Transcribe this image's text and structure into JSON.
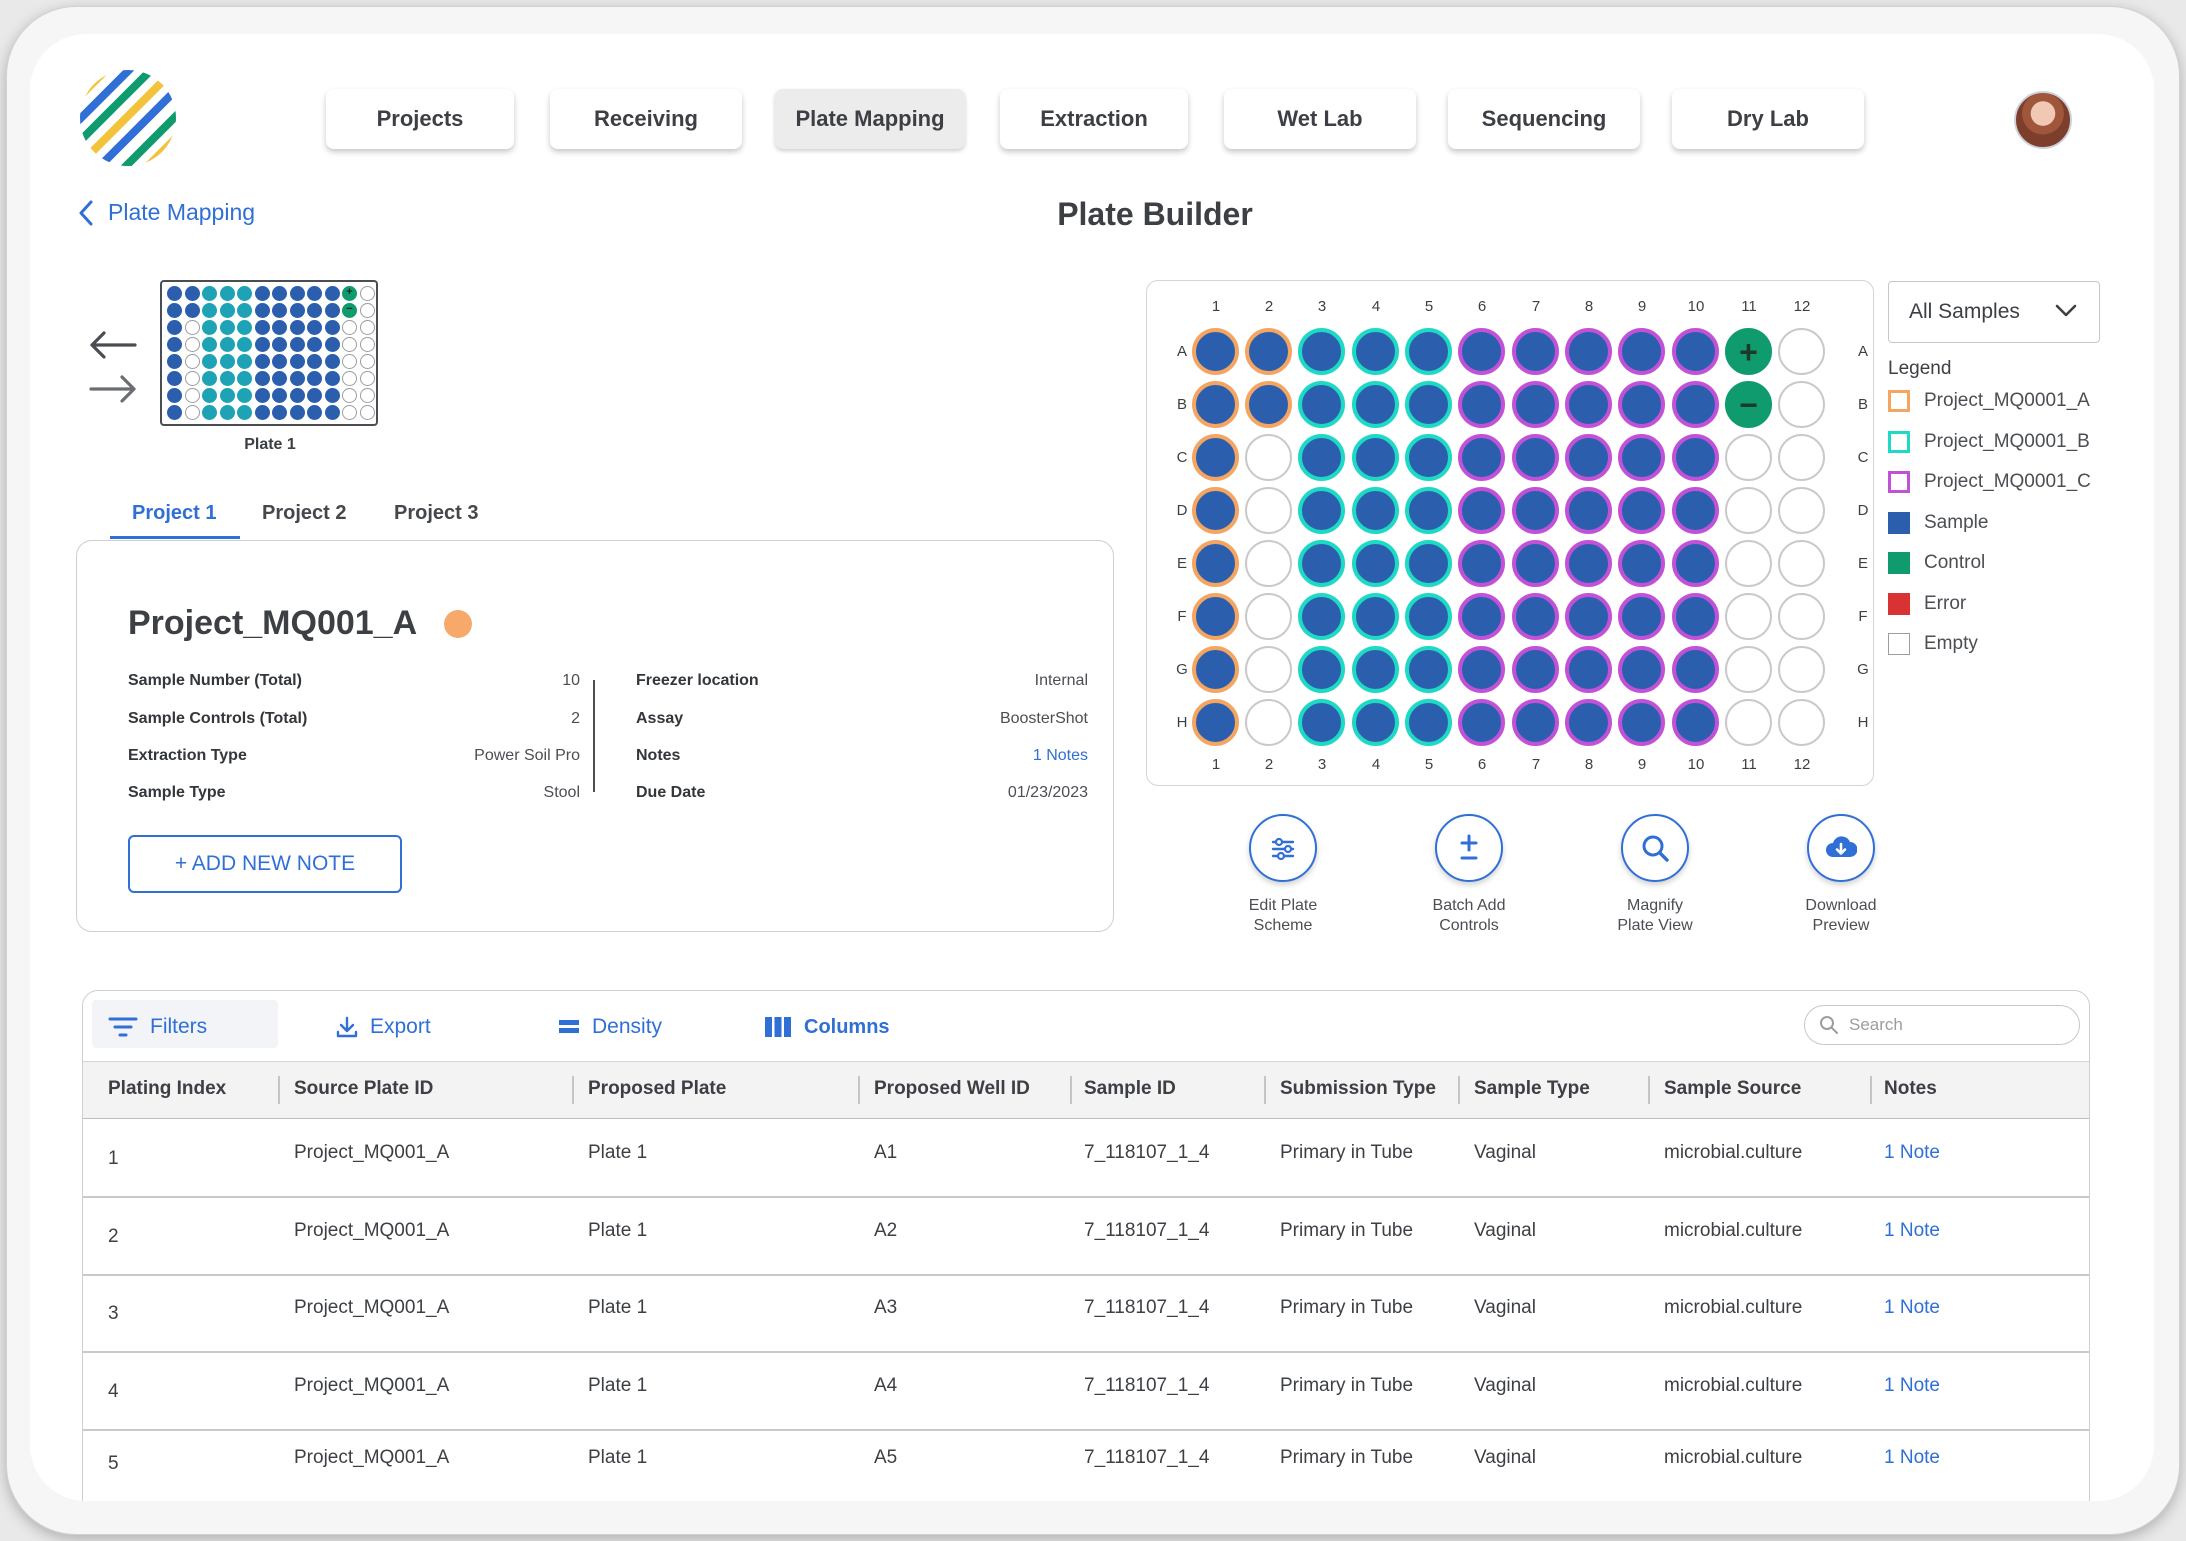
{
  "nav": {
    "tabs": [
      {
        "label": "Projects",
        "active": false
      },
      {
        "label": "Receiving",
        "active": false
      },
      {
        "label": "Plate Mapping",
        "active": true
      },
      {
        "label": "Extraction",
        "active": false
      },
      {
        "label": "Wet Lab",
        "active": false
      },
      {
        "label": "Sequencing",
        "active": false
      },
      {
        "label": "Dry Lab",
        "active": false
      }
    ]
  },
  "breadcrumb": {
    "back_label": "Plate Mapping"
  },
  "page": {
    "title": "Plate Builder"
  },
  "mini_plate": {
    "label": "Plate 1"
  },
  "project_tabs": [
    "Project 1",
    "Project 2",
    "Project 3"
  ],
  "project": {
    "name": "Project_MQ001_A",
    "color": "#f6a96a",
    "left_fields": [
      {
        "key": "Sample Number (Total)",
        "value": "10"
      },
      {
        "key": "Sample Controls (Total)",
        "value": "2"
      },
      {
        "key": "Extraction Type",
        "value": "Power Soil Pro"
      },
      {
        "key": "Sample Type",
        "value": "Stool"
      }
    ],
    "right_fields": [
      {
        "key": "Freezer location",
        "value": "Internal"
      },
      {
        "key": "Assay",
        "value": "BoosterShot"
      },
      {
        "key": "Notes",
        "value": "1 Notes"
      },
      {
        "key": "Due Date",
        "value": "01/23/2023"
      }
    ],
    "add_note_label": "+ ADD NEW NOTE"
  },
  "plate": {
    "columns": [
      "1",
      "2",
      "3",
      "4",
      "5",
      "6",
      "7",
      "8",
      "9",
      "10",
      "11",
      "12"
    ],
    "rows": [
      "A",
      "B",
      "C",
      "D",
      "E",
      "F",
      "G",
      "H"
    ],
    "colors": {
      "sample": "#2b5fad",
      "control": "#0f9b6e",
      "empty": "#ffffff",
      "project_a": "#f4a561",
      "project_b": "#1ed9c3",
      "project_c": "#c152d8",
      "empty_border": "#c9c9c9"
    },
    "wells": [
      "A A B B B C C C C C +c E",
      "A A B B B C C C C C -c E",
      "A E B B B C C C C C E E",
      "A E B B B C C C C C E E",
      "A E B B B C C C C C E E",
      "A E B B B C C C C C E E",
      "A E B B B C C C C C E E",
      "A E B B B C C C C C E E"
    ]
  },
  "filter": {
    "selected": "All Samples"
  },
  "legend": {
    "title": "Legend",
    "items": [
      {
        "label": "Project_MQ0001_A",
        "color": "#f4a561",
        "style": "outline"
      },
      {
        "label": "Project_MQ0001_B",
        "color": "#1ed9c3",
        "style": "outline"
      },
      {
        "label": "Project_MQ0001_C",
        "color": "#c152d8",
        "style": "outline"
      },
      {
        "label": "Sample",
        "color": "#2b5fad",
        "style": "fill"
      },
      {
        "label": "Control",
        "color": "#0f9b6e",
        "style": "fill"
      },
      {
        "label": "Error",
        "color": "#d83232",
        "style": "fill"
      },
      {
        "label": "Empty",
        "color": "#ffffff",
        "style": "empty"
      }
    ]
  },
  "actions": [
    {
      "label_1": "Edit Plate",
      "label_2": "Scheme",
      "icon": "sliders-icon"
    },
    {
      "label_1": "Batch Add",
      "label_2": "Controls",
      "icon": "plus-minus-icon"
    },
    {
      "label_1": "Magnify",
      "label_2": "Plate View",
      "icon": "magnify-icon"
    },
    {
      "label_1": "Download",
      "label_2": "Preview",
      "icon": "cloud-download-icon"
    }
  ],
  "toolbar": {
    "filters": "Filters",
    "export": "Export",
    "density": "Density",
    "columns": "Columns",
    "search_placeholder": "Search"
  },
  "table": {
    "headers": [
      "Plating Index",
      "Source Plate ID",
      "Proposed Plate",
      "Proposed Well ID",
      "Sample ID",
      "Submission Type",
      "Sample Type",
      "Sample Source",
      "Notes"
    ],
    "rows": [
      [
        "1",
        "Project_MQ001_A",
        "Plate 1",
        "A1",
        "7_118107_1_4",
        "Primary in Tube",
        "Vaginal",
        "microbial.culture",
        "1 Note"
      ],
      [
        "2",
        "Project_MQ001_A",
        "Plate 1",
        "A2",
        "7_118107_1_4",
        "Primary in Tube",
        "Vaginal",
        "microbial.culture",
        "1 Note"
      ],
      [
        "3",
        "Project_MQ001_A",
        "Plate 1",
        "A3",
        "7_118107_1_4",
        "Primary in Tube",
        "Vaginal",
        "microbial.culture",
        "1 Note"
      ],
      [
        "4",
        "Project_MQ001_A",
        "Plate 1",
        "A4",
        "7_118107_1_4",
        "Primary in Tube",
        "Vaginal",
        "microbial.culture",
        "1 Note"
      ],
      [
        "5",
        "Project_MQ001_A",
        "Plate 1",
        "A5",
        "7_118107_1_4",
        "Primary in Tube",
        "Vaginal",
        "microbial.culture",
        "1 Note"
      ]
    ]
  }
}
